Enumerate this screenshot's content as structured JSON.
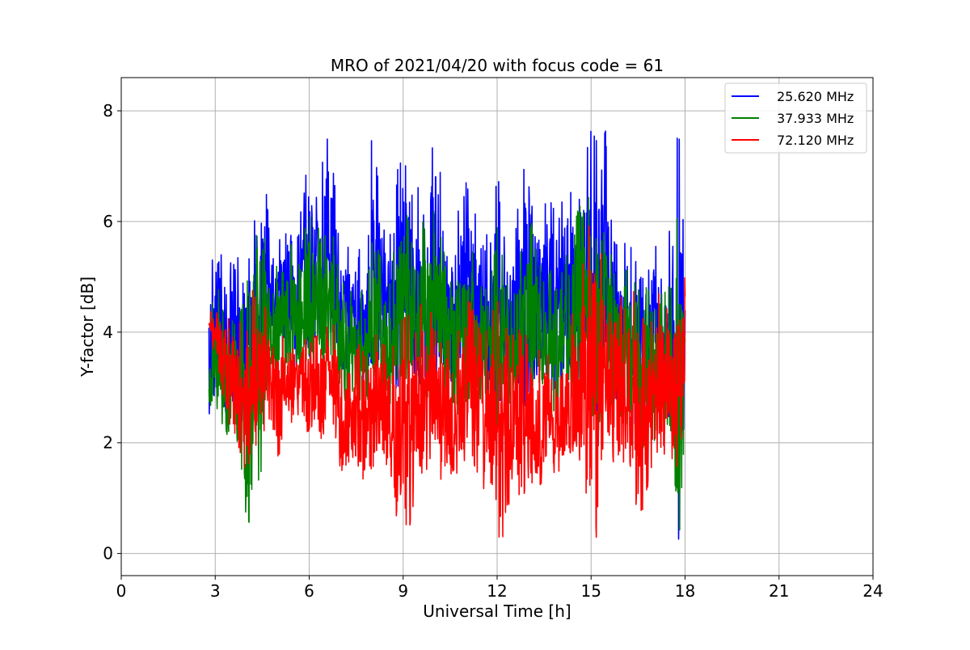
{
  "chart_data": {
    "type": "line",
    "title": "MRO of 2021/04/20 with focus code = 61",
    "xlabel": "Universal Time [h]",
    "ylabel": "Y-factor [dB]",
    "xlim": [
      0,
      24
    ],
    "ylim": [
      -0.4,
      8.6
    ],
    "xticks": [
      0,
      3,
      6,
      9,
      12,
      15,
      18,
      21,
      24
    ],
    "yticks": [
      0,
      2,
      4,
      6,
      8
    ],
    "grid": true,
    "legend_position": "top-right",
    "data_x_range": [
      2.8,
      18.0
    ],
    "series": [
      {
        "name": "25.620 MHz",
        "color": "#0000ff",
        "x": [
          2.8,
          3.0,
          3.2,
          3.4,
          3.6,
          3.8,
          4.0,
          4.2,
          4.4,
          4.6,
          4.8,
          5.0,
          5.2,
          5.4,
          5.6,
          5.8,
          6.0,
          6.2,
          6.4,
          6.6,
          6.8,
          7.0,
          7.2,
          7.4,
          7.6,
          7.8,
          8.0,
          8.2,
          8.4,
          8.6,
          8.8,
          9.0,
          9.2,
          9.4,
          9.6,
          9.8,
          10.0,
          10.2,
          10.4,
          10.6,
          10.8,
          11.0,
          11.2,
          11.4,
          11.6,
          11.8,
          12.0,
          12.2,
          12.4,
          12.6,
          12.8,
          13.0,
          13.2,
          13.4,
          13.6,
          13.8,
          14.0,
          14.2,
          14.4,
          14.6,
          14.8,
          15.0,
          15.2,
          15.4,
          15.6,
          15.8,
          16.0,
          16.2,
          16.4,
          16.6,
          16.8,
          17.0,
          17.2,
          17.4,
          17.6,
          17.8,
          18.0
        ],
        "lower": [
          2.4,
          2.9,
          2.5,
          2.3,
          2.6,
          1.5,
          2.9,
          3.1,
          3.3,
          3.6,
          3.8,
          3.9,
          3.5,
          3.6,
          3.3,
          3.7,
          3.5,
          3.9,
          3.7,
          3.8,
          3.5,
          3.2,
          3.1,
          3.2,
          3.1,
          3.0,
          3.4,
          3.5,
          3.2,
          3.0,
          2.9,
          3.4,
          3.3,
          3.1,
          3.0,
          3.2,
          3.3,
          3.2,
          3.0,
          2.9,
          2.8,
          3.0,
          3.3,
          3.2,
          3.1,
          2.8,
          2.6,
          2.9,
          3.0,
          3.1,
          2.9,
          2.1,
          3.1,
          3.2,
          2.9,
          2.8,
          3.0,
          3.1,
          3.0,
          2.9,
          2.8,
          2.9,
          2.3,
          3.4,
          3.2,
          2.8,
          2.5,
          2.6,
          2.3,
          1.5,
          2.3,
          2.5,
          2.6,
          2.4,
          2.5,
          0.0,
          2.7
        ],
        "upper": [
          4.6,
          6.3,
          5.6,
          4.5,
          6.1,
          5.0,
          4.8,
          6.2,
          5.6,
          6.8,
          5.3,
          5.8,
          5.7,
          6.4,
          5.6,
          6.5,
          7.3,
          6.5,
          7.2,
          7.6,
          7.0,
          5.3,
          5.7,
          5.1,
          5.5,
          5.4,
          7.6,
          6.8,
          6.0,
          5.9,
          6.9,
          7.5,
          6.6,
          6.3,
          7.3,
          6.9,
          7.8,
          7.0,
          6.0,
          5.8,
          6.3,
          6.8,
          6.5,
          5.9,
          6.2,
          5.6,
          7.0,
          6.0,
          5.4,
          6.0,
          6.9,
          7.7,
          6.6,
          6.0,
          6.8,
          6.4,
          6.1,
          6.9,
          6.7,
          7.5,
          7.3,
          7.9,
          7.6,
          8.2,
          6.3,
          5.6,
          5.6,
          5.8,
          6.9,
          6.3,
          5.2,
          5.9,
          5.1,
          5.3,
          6.4,
          7.9,
          5.3
        ]
      },
      {
        "name": "37.933 MHz",
        "color": "#008000",
        "x": [
          2.8,
          3.0,
          3.2,
          3.4,
          3.6,
          3.8,
          4.0,
          4.2,
          4.4,
          4.6,
          4.8,
          5.0,
          5.2,
          5.4,
          5.6,
          5.8,
          6.0,
          6.2,
          6.4,
          6.6,
          6.8,
          7.0,
          7.2,
          7.4,
          7.6,
          7.8,
          8.0,
          8.2,
          8.4,
          8.6,
          8.8,
          9.0,
          9.2,
          9.4,
          9.6,
          9.8,
          10.0,
          10.2,
          10.4,
          10.6,
          10.8,
          11.0,
          11.2,
          11.4,
          11.6,
          11.8,
          12.0,
          12.2,
          12.4,
          12.6,
          12.8,
          13.0,
          13.2,
          13.4,
          13.6,
          13.8,
          14.0,
          14.2,
          14.4,
          14.6,
          14.8,
          15.0,
          15.2,
          15.4,
          15.6,
          15.8,
          16.0,
          16.2,
          16.4,
          16.6,
          16.8,
          17.0,
          17.2,
          17.4,
          17.6,
          17.8,
          18.0
        ],
        "lower": [
          2.5,
          2.7,
          2.3,
          2.1,
          2.4,
          1.5,
          0.4,
          0.6,
          0.8,
          2.8,
          3.0,
          3.1,
          3.0,
          3.2,
          3.0,
          3.3,
          3.1,
          3.4,
          3.2,
          3.3,
          3.0,
          2.7,
          2.6,
          2.8,
          2.7,
          2.6,
          2.9,
          3.0,
          2.8,
          2.6,
          2.5,
          2.9,
          2.9,
          2.7,
          2.6,
          2.8,
          2.9,
          2.8,
          2.6,
          2.5,
          2.4,
          2.6,
          2.9,
          2.8,
          2.7,
          2.4,
          2.2,
          2.5,
          2.6,
          2.7,
          2.5,
          1.9,
          2.7,
          2.8,
          2.5,
          2.4,
          2.6,
          2.7,
          2.6,
          2.5,
          2.4,
          2.5,
          2.0,
          3.0,
          2.8,
          1.7,
          2.2,
          2.3,
          2.0,
          1.3,
          2.0,
          1.5,
          2.2,
          2.0,
          2.1,
          0.0,
          2.3
        ],
        "upper": [
          3.9,
          5.2,
          4.6,
          4.1,
          4.3,
          4.4,
          4.7,
          6.5,
          5.3,
          5.8,
          4.9,
          5.4,
          5.1,
          5.9,
          5.2,
          5.8,
          6.2,
          5.7,
          6.5,
          6.4,
          5.9,
          4.8,
          5.1,
          4.6,
          4.9,
          4.8,
          5.8,
          5.6,
          5.0,
          5.1,
          5.9,
          6.6,
          6.0,
          5.6,
          6.2,
          5.9,
          6.4,
          5.8,
          5.2,
          5.1,
          5.6,
          5.8,
          5.6,
          5.2,
          5.4,
          5.0,
          6.0,
          5.4,
          4.9,
          5.3,
          5.8,
          6.3,
          5.7,
          5.3,
          5.9,
          5.6,
          5.4,
          6.0,
          5.8,
          6.3,
          6.2,
          6.6,
          6.5,
          7.1,
          5.6,
          5.1,
          5.0,
          5.2,
          5.9,
          5.4,
          4.8,
          5.1,
          4.7,
          4.8,
          5.0,
          6.8,
          4.4
        ]
      },
      {
        "name": "72.120 MHz",
        "color": "#ff0000",
        "x": [
          2.8,
          3.0,
          3.2,
          3.4,
          3.6,
          3.8,
          4.0,
          4.2,
          4.4,
          4.6,
          4.8,
          5.0,
          5.2,
          5.4,
          5.6,
          5.8,
          6.0,
          6.2,
          6.4,
          6.6,
          6.8,
          7.0,
          7.2,
          7.4,
          7.6,
          7.8,
          8.0,
          8.2,
          8.4,
          8.6,
          8.8,
          9.0,
          9.2,
          9.4,
          9.6,
          9.8,
          10.0,
          10.2,
          10.4,
          10.6,
          10.8,
          11.0,
          11.2,
          11.4,
          11.6,
          11.8,
          12.0,
          12.2,
          12.4,
          12.6,
          12.8,
          13.0,
          13.2,
          13.4,
          13.6,
          13.8,
          14.0,
          14.2,
          14.4,
          14.6,
          14.8,
          15.0,
          15.2,
          15.4,
          15.6,
          15.8,
          16.0,
          16.2,
          16.4,
          16.6,
          16.8,
          17.0,
          17.2,
          17.4,
          17.6,
          17.8,
          18.0
        ],
        "lower": [
          3.8,
          3.5,
          2.9,
          2.1,
          2.2,
          1.6,
          1.3,
          1.4,
          2.2,
          1.9,
          2.0,
          1.5,
          2.3,
          2.4,
          2.2,
          2.3,
          2.0,
          2.5,
          1.8,
          2.4,
          2.3,
          1.3,
          1.4,
          1.4,
          1.3,
          1.2,
          1.3,
          1.6,
          1.5,
          1.2,
          0.2,
          0.9,
          0.1,
          1.2,
          1.4,
          1.5,
          1.7,
          1.2,
          1.3,
          1.2,
          1.5,
          1.3,
          1.6,
          1.4,
          1.1,
          0.8,
          0.0,
          0.2,
          0.9,
          1.0,
          0.9,
          1.2,
          1.3,
          1.1,
          1.4,
          1.2,
          1.4,
          1.5,
          1.6,
          1.3,
          1.1,
          0.7,
          0.2,
          1.7,
          1.5,
          1.4,
          1.6,
          1.3,
          0.9,
          0.6,
          1.0,
          1.7,
          1.6,
          1.8,
          1.6,
          1.2,
          2.6
        ],
        "upper": [
          4.3,
          4.6,
          4.4,
          4.5,
          4.2,
          4.3,
          4.6,
          4.9,
          4.7,
          4.5,
          4.1,
          4.3,
          3.9,
          4.0,
          3.8,
          4.1,
          3.8,
          4.0,
          3.9,
          4.2,
          4.3,
          3.5,
          3.7,
          3.6,
          3.8,
          3.7,
          3.9,
          4.1,
          4.0,
          3.7,
          3.9,
          4.3,
          4.4,
          4.1,
          4.6,
          4.5,
          4.6,
          4.4,
          4.0,
          3.9,
          4.1,
          4.7,
          4.5,
          4.2,
          4.0,
          4.3,
          4.6,
          4.3,
          4.1,
          3.9,
          4.2,
          3.9,
          3.6,
          3.8,
          3.7,
          3.5,
          3.7,
          3.9,
          4.4,
          4.9,
          5.4,
          6.3,
          5.9,
          5.2,
          5.0,
          4.9,
          4.6,
          4.7,
          4.9,
          4.4,
          4.2,
          4.4,
          4.9,
          4.6,
          4.5,
          4.8,
          5.1
        ]
      }
    ]
  }
}
